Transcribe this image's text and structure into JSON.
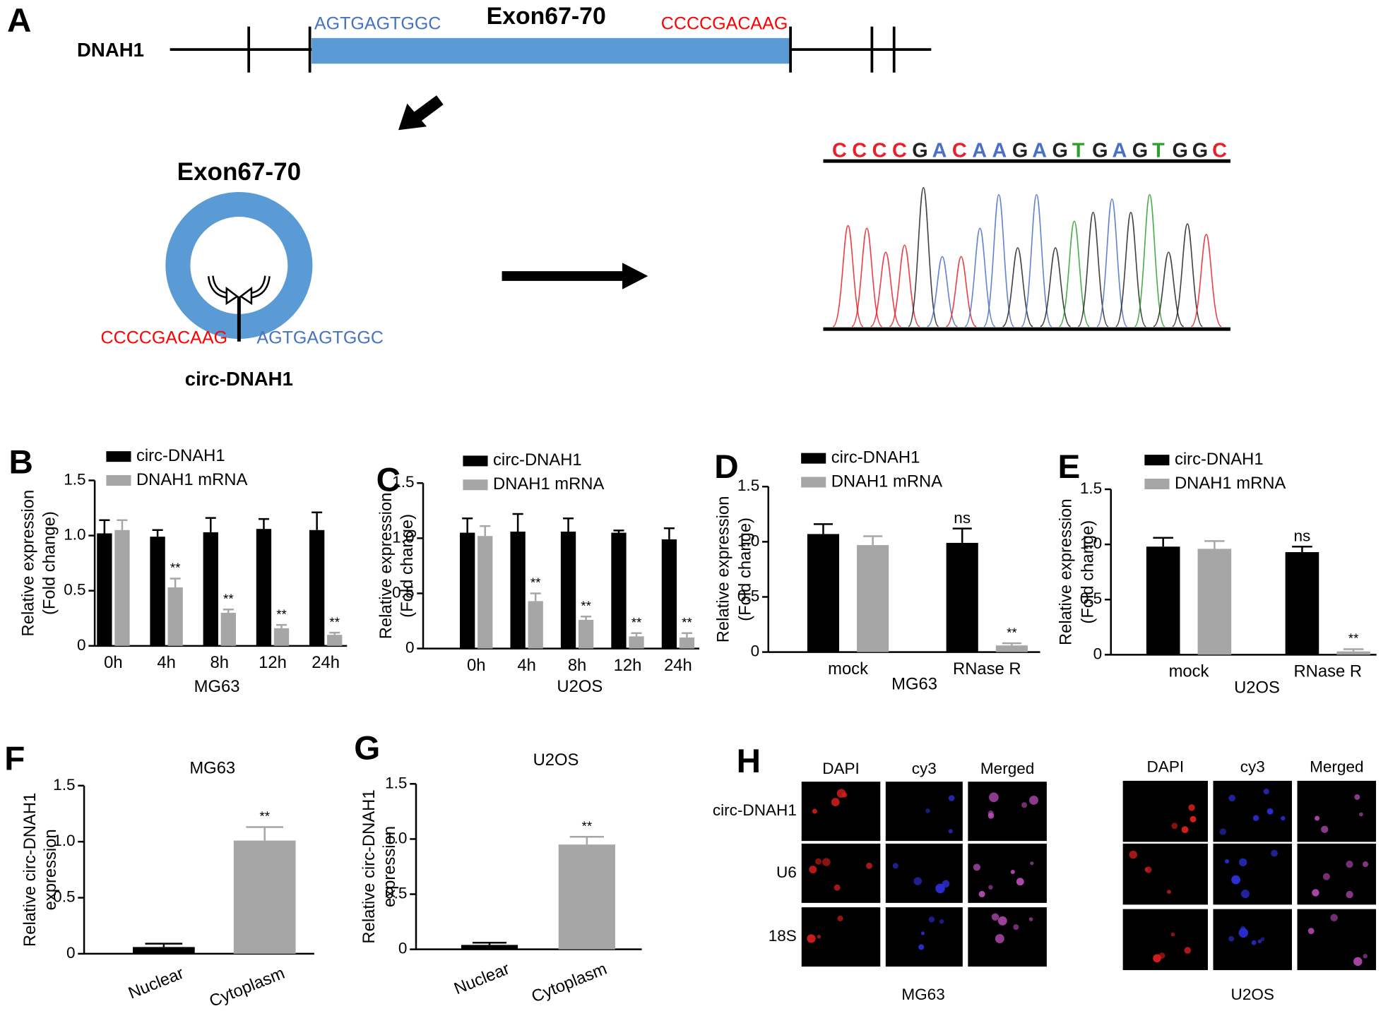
{
  "panel_a": {
    "label": "A",
    "gene": "DNAH1",
    "exon": "Exon67-70",
    "exon_color": "#5b9bd5",
    "left_seq": "AGTGAGTGGC",
    "left_color": "#4472c4",
    "right_seq": "CCCCGACAAG",
    "right_color": "#ff0000",
    "circle_exon": "Exon67-70",
    "junction_left": "CCCCGACAAG",
    "junction_right": "AGTGAGTGGC",
    "circ_name": "circ-DNAH1",
    "bases": [
      "C",
      "C",
      "C",
      "C",
      "G",
      "A",
      "C",
      "A",
      "A",
      "G",
      "A",
      "G",
      "T",
      "G",
      "A",
      "G",
      "T",
      "G",
      "G",
      "C"
    ],
    "base_colors": {
      "C": "#e8202a",
      "A": "#4a6fc7",
      "G": "#222222",
      "T": "#2ca02c"
    }
  },
  "chart_data": [
    {
      "type": "bar",
      "panel": "B",
      "ylabel": [
        "Relative  expression",
        "(Fold change)"
      ],
      "xlabel": "MG63",
      "categories": [
        "0h",
        "4h",
        "8h",
        "12h",
        "24h"
      ],
      "series": [
        {
          "name": "circ-DNAH1",
          "color": "#000000",
          "values": [
            1.02,
            0.99,
            1.03,
            1.06,
            1.05
          ],
          "errors": [
            0.12,
            0.06,
            0.13,
            0.09,
            0.16
          ]
        },
        {
          "name": "DNAH1 mRNA",
          "color": "#a6a6a6",
          "values": [
            1.05,
            0.53,
            0.3,
            0.16,
            0.1
          ],
          "errors": [
            0.09,
            0.08,
            0.03,
            0.03,
            0.02
          ],
          "significance": [
            null,
            "**",
            "**",
            "**",
            "**"
          ]
        }
      ],
      "ylim": [
        0,
        1.5
      ],
      "yticks": [
        0,
        0.5,
        {
          "value": 1,
          "label": "1.0"
        },
        1.5
      ]
    },
    {
      "type": "bar",
      "panel": "C",
      "ylabel": [
        "Relative  expression",
        "(Fold change)"
      ],
      "xlabel": "U2OS",
      "categories": [
        "0h",
        "4h",
        "8h",
        "12h",
        "24h"
      ],
      "series": [
        {
          "name": "circ-DNAH1",
          "color": "#000000",
          "values": [
            1.05,
            1.06,
            1.06,
            1.05,
            0.99
          ],
          "errors": [
            0.13,
            0.16,
            0.12,
            0.02,
            0.1
          ]
        },
        {
          "name": "DNAH1 mRNA",
          "color": "#a6a6a6",
          "values": [
            1.02,
            0.43,
            0.26,
            0.11,
            0.1
          ],
          "errors": [
            0.09,
            0.07,
            0.03,
            0.03,
            0.04
          ],
          "significance": [
            null,
            "**",
            "**",
            "**",
            "**"
          ]
        }
      ],
      "ylim": [
        0,
        1.5
      ],
      "yticks": [
        0,
        0.5,
        {
          "value": 1,
          "label": "1.0"
        },
        1.5
      ]
    },
    {
      "type": "bar",
      "panel": "D",
      "ylabel": [
        "Relative  expression",
        "(Fold change)"
      ],
      "xlabel": "MG63",
      "categories": [
        "mock",
        "RNase R"
      ],
      "series": [
        {
          "name": "circ-DNAH1",
          "color": "#000000",
          "values": [
            1.07,
            0.99
          ],
          "errors": [
            0.09,
            0.13
          ],
          "significance": [
            null,
            "ns"
          ]
        },
        {
          "name": "DNAH1 mRNA",
          "color": "#a6a6a6",
          "values": [
            0.97,
            0.06
          ],
          "errors": [
            0.08,
            0.02
          ],
          "significance": [
            null,
            "**"
          ]
        }
      ],
      "ylim": [
        0,
        1.5
      ],
      "yticks": [
        0,
        0.5,
        {
          "value": 1,
          "label": "1.0"
        },
        1.5
      ]
    },
    {
      "type": "bar",
      "panel": "E",
      "ylabel": [
        "Relative  expression",
        "(Fold change)"
      ],
      "xlabel": "U2OS",
      "categories": [
        "mock",
        "RNase R"
      ],
      "series": [
        {
          "name": "circ-DNAH1",
          "color": "#000000",
          "values": [
            0.98,
            0.93
          ],
          "errors": [
            0.08,
            0.05
          ],
          "significance": [
            null,
            "ns"
          ]
        },
        {
          "name": "DNAH1 mRNA",
          "color": "#a6a6a6",
          "values": [
            0.96,
            0.03
          ],
          "errors": [
            0.07,
            0.02
          ],
          "significance": [
            null,
            "**"
          ]
        }
      ],
      "ylim": [
        0,
        1.5
      ],
      "yticks": [
        0,
        0.5,
        {
          "value": 1,
          "label": "1.0"
        },
        1.5
      ]
    },
    {
      "type": "bar",
      "panel": "F",
      "title": "MG63",
      "ylabel": [
        "Relative circ-DNAH1",
        "expression"
      ],
      "categories": [
        "Nuclear",
        "Cytoplasm"
      ],
      "rotate_labels": true,
      "series": [
        {
          "colors": [
            "#000000",
            "#a6a6a6"
          ],
          "values": [
            0.06,
            1.01
          ],
          "errors": [
            0.03,
            0.12
          ],
          "significance": [
            null,
            "**"
          ]
        }
      ],
      "ylim": [
        0,
        1.5
      ],
      "yticks": [
        0,
        0.5,
        {
          "value": 1,
          "label": "1.0"
        },
        1.5
      ]
    },
    {
      "type": "bar",
      "panel": "G",
      "title": "U2OS",
      "ylabel": [
        "Relative circ-DNAH1",
        "expression"
      ],
      "categories": [
        "Nuclear",
        "Cytoplasm"
      ],
      "rotate_labels": true,
      "series": [
        {
          "colors": [
            "#000000",
            "#a6a6a6"
          ],
          "values": [
            0.04,
            0.95
          ],
          "errors": [
            0.02,
            0.07
          ],
          "significance": [
            null,
            "**"
          ]
        }
      ],
      "ylim": [
        0,
        1.5
      ],
      "yticks": [
        0,
        0.5,
        {
          "value": 1,
          "label": "1.0"
        },
        1.5
      ]
    }
  ],
  "panel_h": {
    "label": "H",
    "groups": [
      {
        "caption": "MG63",
        "columns": [
          "DAPI",
          "cy3",
          "Merged"
        ],
        "rows": [
          "circ-DNAH1",
          "U6",
          "18S"
        ]
      },
      {
        "caption": "U2OS",
        "columns": [
          "DAPI",
          "cy3",
          "Merged"
        ]
      }
    ]
  }
}
